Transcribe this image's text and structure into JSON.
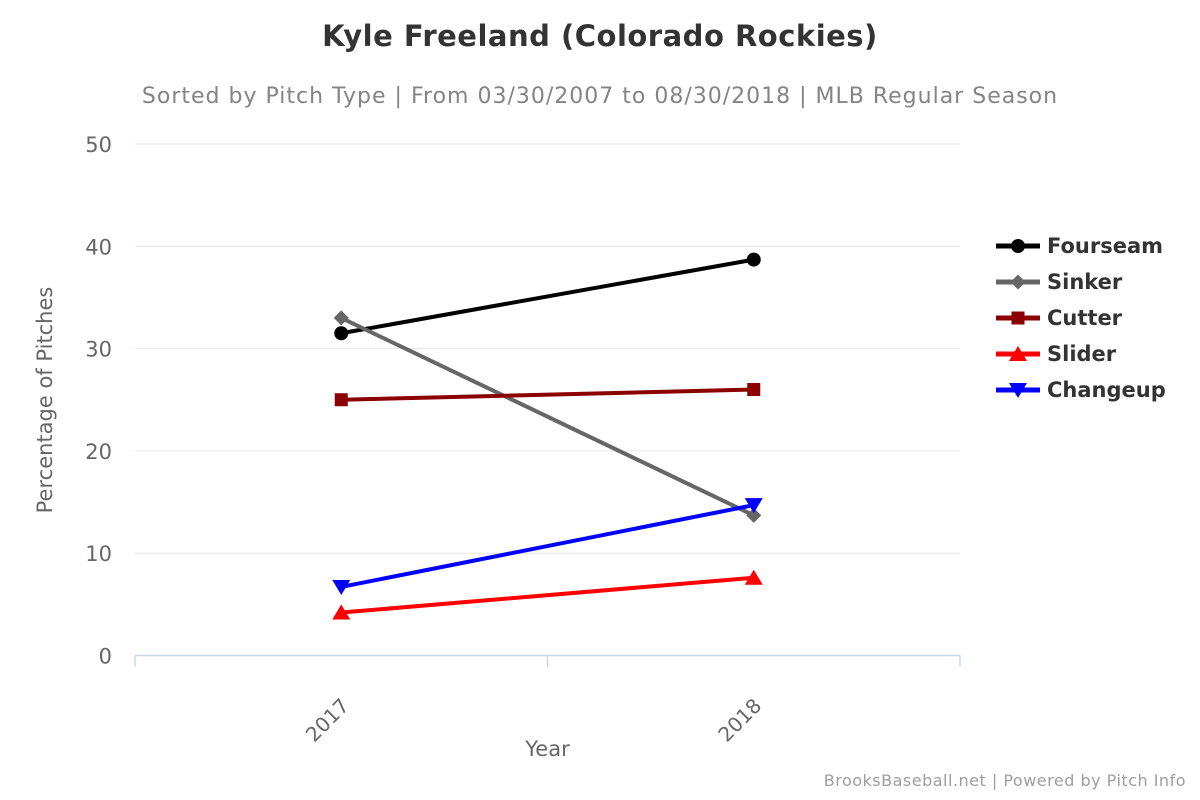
{
  "header": {
    "title": "Kyle Freeland (Colorado Rockies)",
    "subtitle": "Sorted by Pitch Type | From 03/30/2007 to 08/30/2018 | MLB Regular Season"
  },
  "chart_data": {
    "type": "line",
    "categories": [
      "2017",
      "2018"
    ],
    "series": [
      {
        "name": "Fourseam",
        "values": [
          31.5,
          38.7
        ],
        "color": "#000000",
        "marker": "circle"
      },
      {
        "name": "Sinker",
        "values": [
          33.0,
          13.7
        ],
        "color": "#666666",
        "marker": "diamond"
      },
      {
        "name": "Cutter",
        "values": [
          25.0,
          26.0
        ],
        "color": "#8b0000",
        "marker": "square"
      },
      {
        "name": "Slider",
        "values": [
          4.2,
          7.6
        ],
        "color": "#ff0000",
        "marker": "triangle-up"
      },
      {
        "name": "Changeup",
        "values": [
          6.7,
          14.7
        ],
        "color": "#0000ff",
        "marker": "triangle-down"
      }
    ],
    "title": "Kyle Freeland (Colorado Rockies)",
    "xlabel": "Year",
    "ylabel": "Percentage of Pitches",
    "ylim": [
      0,
      50
    ],
    "yticks": [
      0,
      10,
      20,
      30,
      40,
      50
    ],
    "grid": true,
    "legend_position": "right"
  },
  "palette": {
    "title_color": "#333333",
    "subtitle_color": "#848484",
    "grid_color": "#e6e6e6",
    "axis_line_color": "#ccd6eb",
    "tick_label_color": "#666666",
    "legend_text_color": "#333333",
    "credit_color": "#9e9e9e"
  },
  "footer": {
    "credit": "BrooksBaseball.net | Powered by Pitch Info"
  }
}
